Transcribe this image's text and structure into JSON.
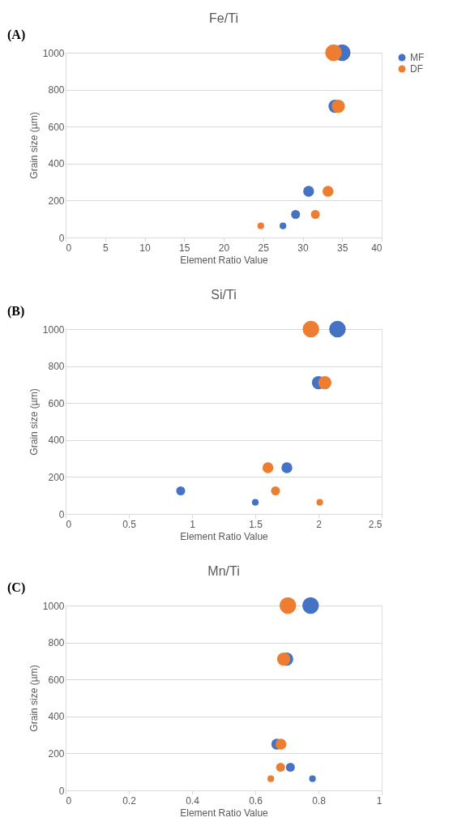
{
  "chart_data": [
    {
      "type": "bubble",
      "title": "Fe/Ti",
      "annotations": [
        "(A)"
      ],
      "xlabel": "Element Ratio Value",
      "ylabel": "Grain size (µm)",
      "xlim": [
        0,
        40
      ],
      "xticks": [
        0,
        5,
        10,
        15,
        20,
        25,
        30,
        35,
        40
      ],
      "ylim": [
        0,
        1000
      ],
      "yticks": [
        0,
        200,
        400,
        600,
        800,
        1000
      ],
      "grid": "y",
      "legend": "right",
      "series": [
        {
          "name": "MF",
          "color": "#4472c4",
          "x": [
            27.5,
            29.1,
            30.75,
            34.1,
            35.0
          ],
          "values": [
            63,
            125,
            250,
            710,
            1000
          ],
          "sizes": [
            0.16,
            0.29,
            0.43,
            0.64,
            1
          ]
        },
        {
          "name": "DF",
          "color": "#ed7d31",
          "x": [
            24.7,
            31.6,
            33.2,
            34.5,
            33.9
          ],
          "values": [
            63,
            125,
            250,
            710,
            1000
          ],
          "sizes": [
            0.16,
            0.29,
            0.43,
            0.64,
            1
          ]
        }
      ]
    },
    {
      "type": "bubble",
      "title": "Si/Ti",
      "annotations": [
        "(B)"
      ],
      "xlabel": "Element Ratio Value",
      "ylabel": "Grain size (µm)",
      "xlim": [
        0,
        2.5
      ],
      "xticks": [
        0,
        0.5,
        1,
        1.5,
        2,
        2.5
      ],
      "ylim": [
        0,
        1000
      ],
      "yticks": [
        0,
        200,
        400,
        600,
        800,
        1000
      ],
      "grid": "y",
      "legend": "right",
      "series": [
        {
          "name": "MF",
          "color": "#4472c4",
          "x": [
            1.5,
            0.91,
            1.75,
            2.0,
            2.15
          ],
          "values": [
            63,
            125,
            250,
            710,
            1000
          ],
          "sizes": [
            0.16,
            0.29,
            0.43,
            0.64,
            1
          ]
        },
        {
          "name": "DF",
          "color": "#ed7d31",
          "x": [
            2.01,
            1.66,
            1.6,
            2.05,
            1.94
          ],
          "values": [
            63,
            125,
            250,
            710,
            1000
          ],
          "sizes": [
            0.16,
            0.29,
            0.43,
            0.64,
            1
          ]
        }
      ]
    },
    {
      "type": "bubble",
      "title": "Mn/Ti",
      "annotations": [
        "(C)"
      ],
      "xlabel": "Element Ratio Value",
      "ylabel": "Grain size (µm)",
      "xlim": [
        0,
        1
      ],
      "xticks": [
        0,
        0.2,
        0.4,
        0.6,
        0.8,
        1
      ],
      "ylim": [
        0,
        1000
      ],
      "yticks": [
        0,
        200,
        400,
        600,
        800,
        1000
      ],
      "grid": "y",
      "legend": "right",
      "series": [
        {
          "name": "MF",
          "color": "#4472c4",
          "x": [
            0.781,
            0.711,
            0.668,
            0.699,
            0.775
          ],
          "values": [
            63,
            125,
            250,
            710,
            1000
          ],
          "sizes": [
            0.16,
            0.29,
            0.43,
            0.64,
            1
          ]
        },
        {
          "name": "DF",
          "color": "#ed7d31",
          "x": [
            0.649,
            0.68,
            0.681,
            0.69,
            0.703
          ],
          "values": [
            63,
            125,
            250,
            710,
            1000
          ],
          "sizes": [
            0.16,
            0.29,
            0.43,
            0.64,
            1
          ]
        }
      ]
    }
  ]
}
